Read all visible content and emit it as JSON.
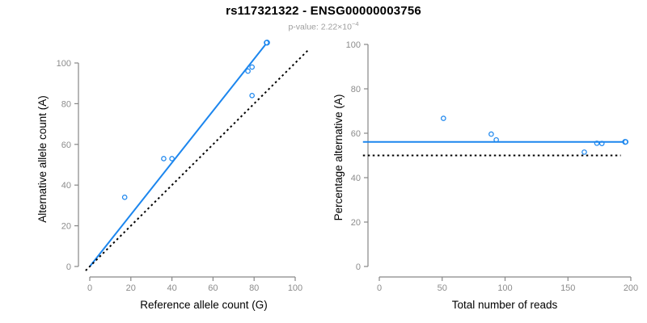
{
  "figure": {
    "title": "rs117321322 - ENSG00000003756",
    "subtitle_prefix": "p-value: 2.22×10",
    "subtitle_exponent": "−4"
  },
  "colors": {
    "accent_blue": "#1c86ee",
    "axis_gray": "#878787",
    "tick_label_gray": "#8c8c8c",
    "title_black": "#000000",
    "subtitle_gray": "#9d9d9d",
    "dashed_black": "#000000",
    "background": "#ffffff"
  },
  "chart_data": [
    {
      "type": "scatter",
      "name": "allele-counts",
      "title": "rs117321322 - ENSG00000003756",
      "subtitle": "p-value: 2.22×10−4",
      "xlabel": "Reference allele count (G)",
      "ylabel": "Alternative allele count (A)",
      "xticks": [
        0,
        20,
        40,
        60,
        80,
        100
      ],
      "yticks": [
        0,
        20,
        40,
        60,
        80,
        100
      ],
      "xlim": [
        0,
        107
      ],
      "ylim": [
        0,
        110
      ],
      "grid": false,
      "points": [
        [
          17,
          34
        ],
        [
          36,
          53
        ],
        [
          40,
          53
        ],
        [
          79,
          84
        ],
        [
          77,
          96
        ],
        [
          79,
          98
        ],
        [
          86,
          110
        ]
      ],
      "lines": [
        {
          "name": "regression-line",
          "style": "solid",
          "color_key": "accent_blue",
          "from": [
            0,
            0
          ],
          "to": [
            86.3,
            110
          ],
          "width": 2,
          "end_marker": true
        },
        {
          "name": "identity-line",
          "style": "dashed",
          "color_key": "dashed_black",
          "from": [
            -2,
            -2
          ],
          "to": [
            107,
            107
          ],
          "width": 2
        }
      ]
    },
    {
      "type": "scatter",
      "name": "percentage-vs-reads",
      "xlabel": "Total number of reads",
      "ylabel": "Percentage alternative (A)",
      "xticks": [
        0,
        50,
        100,
        150,
        200
      ],
      "yticks": [
        0,
        20,
        40,
        60,
        80,
        100
      ],
      "xlim": [
        0,
        200
      ],
      "ylim": [
        0,
        100
      ],
      "grid": false,
      "points": [
        [
          51,
          66.7
        ],
        [
          89,
          59.6
        ],
        [
          93,
          57.0
        ],
        [
          163,
          51.5
        ],
        [
          173,
          55.5
        ],
        [
          177,
          55.4
        ],
        [
          196,
          56.1
        ]
      ],
      "lines": [
        {
          "name": "mean-percentage-line",
          "style": "solid",
          "color_key": "accent_blue",
          "from": [
            -13,
            56.1
          ],
          "to": [
            195.5,
            56.1
          ],
          "width": 2,
          "end_marker": true
        },
        {
          "name": "expected-50pct-line",
          "style": "dashed",
          "color_key": "dashed_black",
          "from": [
            -13,
            50
          ],
          "to": [
            192,
            50
          ],
          "width": 2
        }
      ]
    }
  ]
}
